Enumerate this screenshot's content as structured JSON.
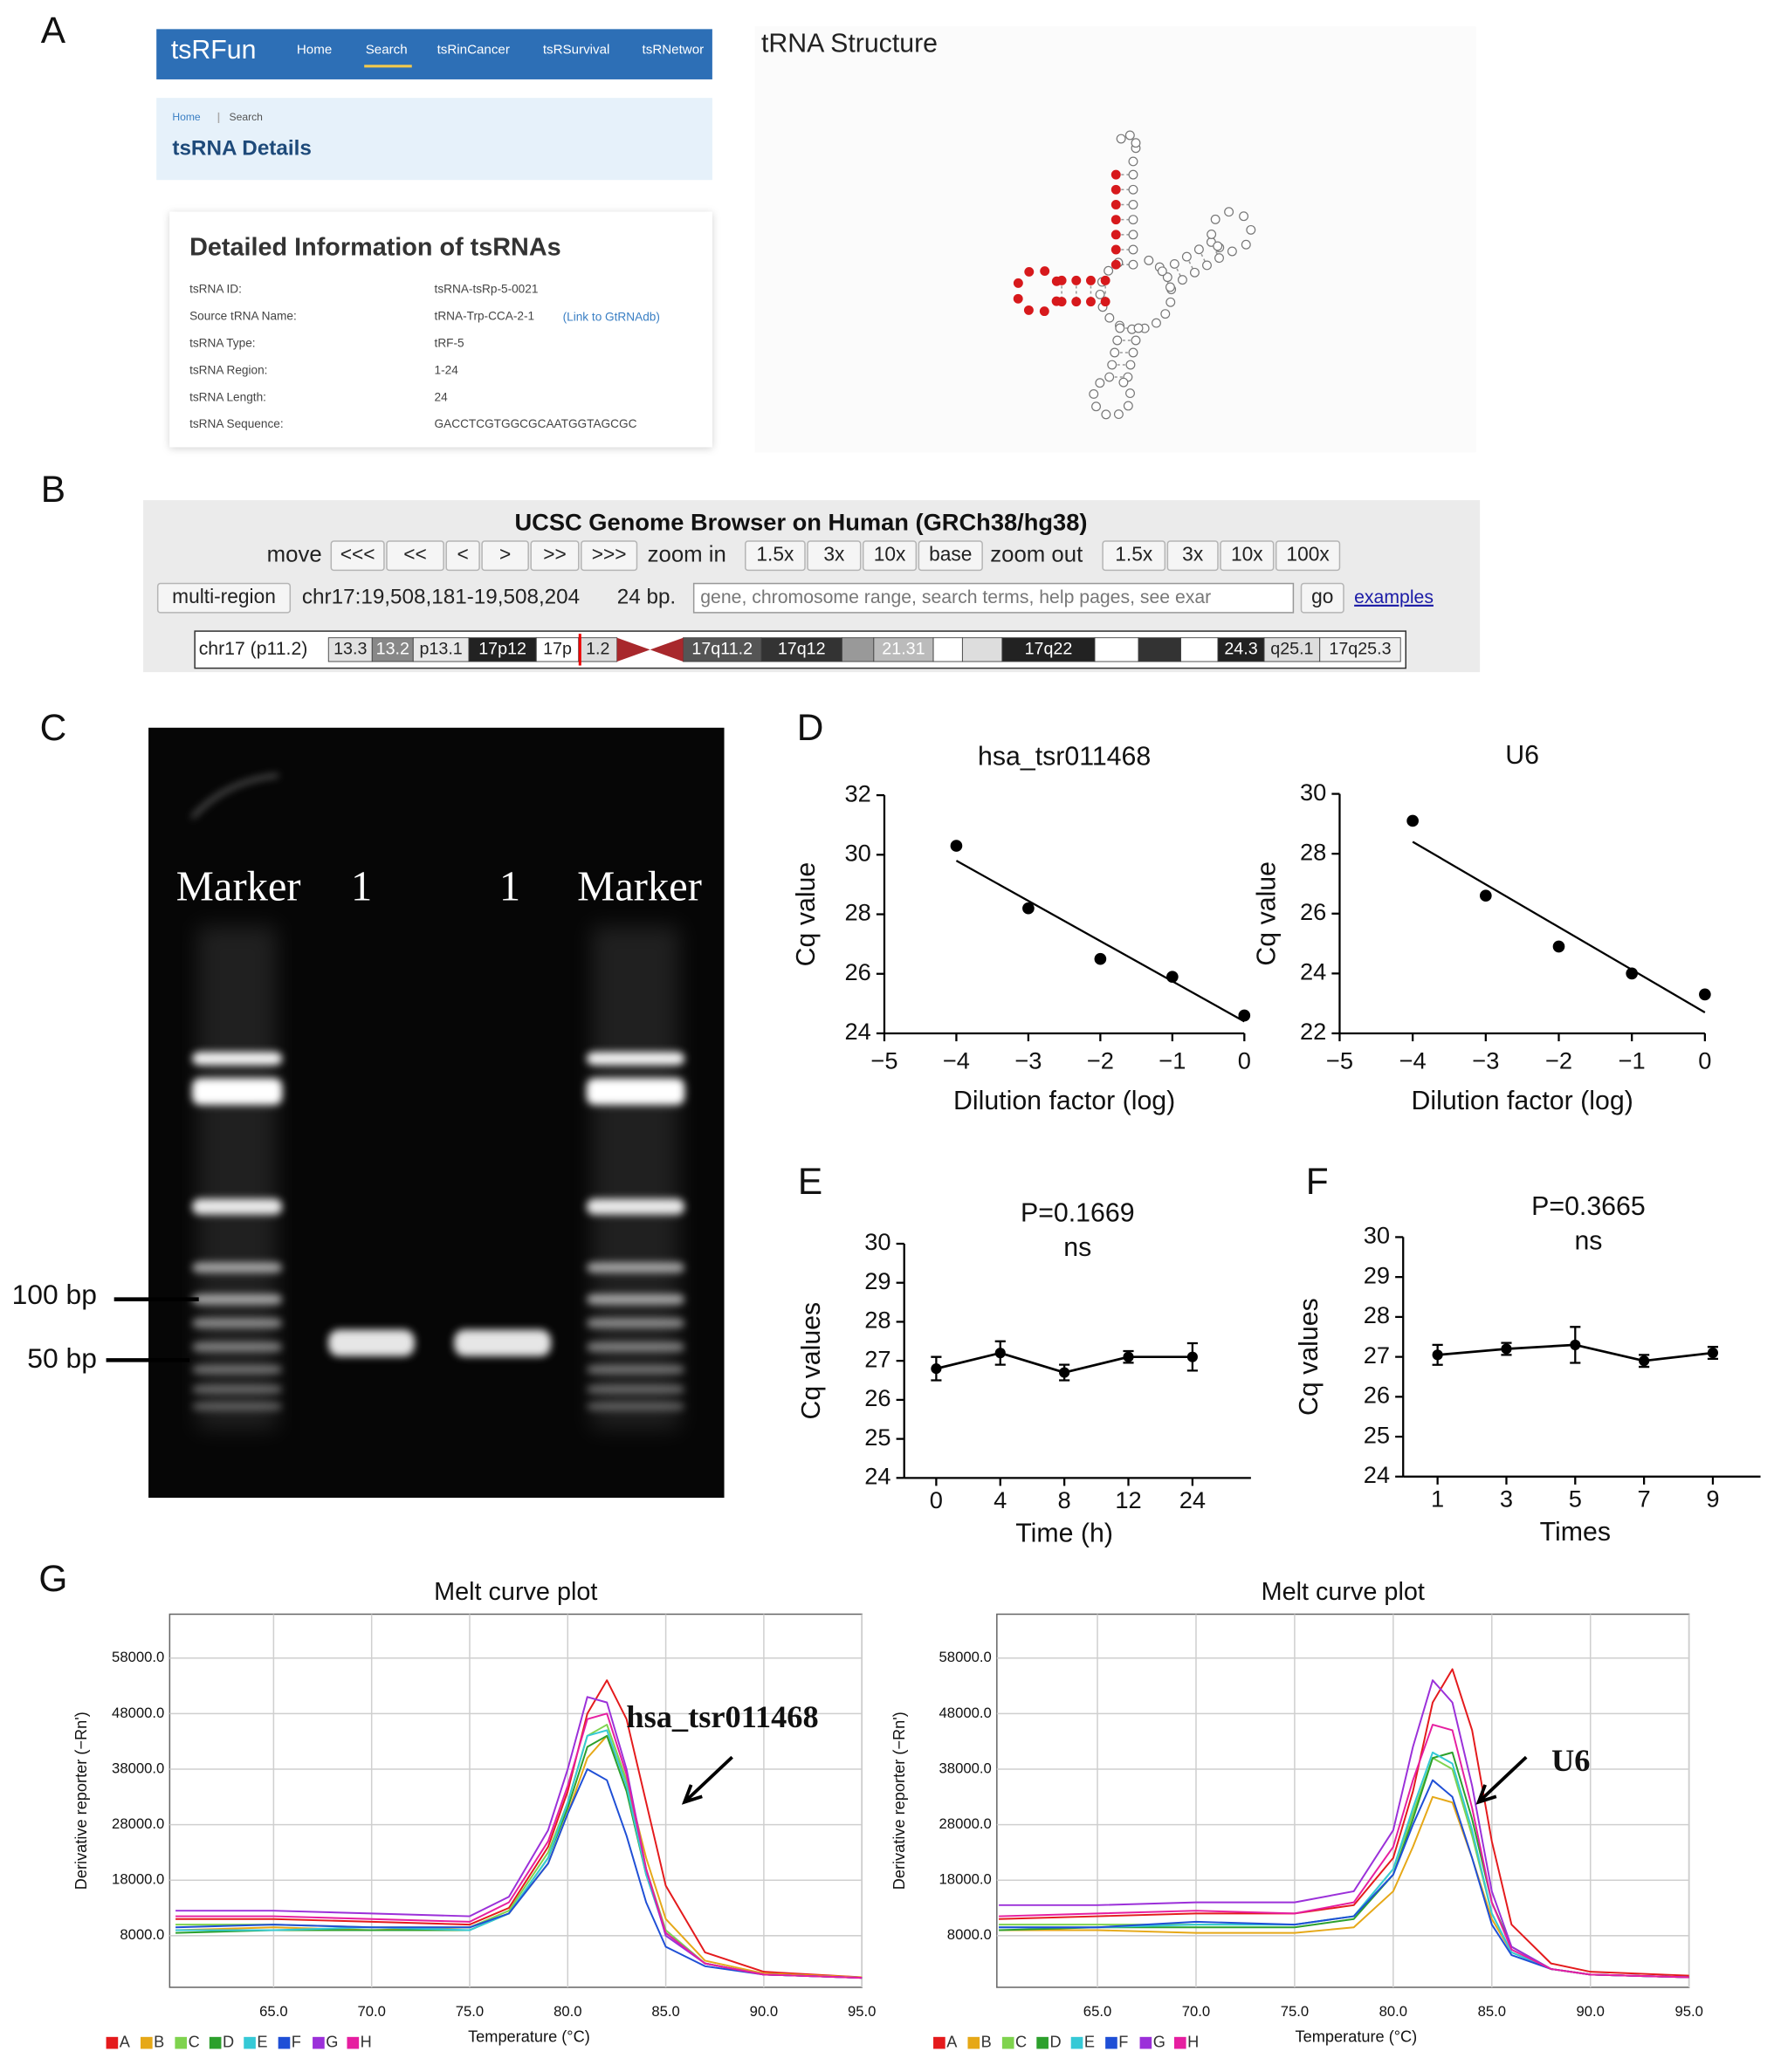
{
  "panel_labels": [
    "A",
    "B",
    "C",
    "D",
    "E",
    "F",
    "G"
  ],
  "tsrfun": {
    "brand": "tsRFun",
    "nav": [
      "Home",
      "Search",
      "tsRinCancer",
      "tsRSurvival",
      "tsRNetwor"
    ],
    "breadcrumb": [
      "Home",
      "Search"
    ],
    "page_title": "tsRNA Details",
    "card_title": "Detailed Information of tsRNAs",
    "rows": [
      [
        "tsRNA ID:",
        "tsRNA-tsRp-5-0021"
      ],
      [
        "Source tRNA Name:",
        "tRNA-Trp-CCA-2-1"
      ],
      [
        "tsRNA Type:",
        "tRF-5"
      ],
      [
        "tsRNA Region:",
        "1-24"
      ],
      [
        "tsRNA Length:",
        "24"
      ],
      [
        "tsRNA Sequence:",
        "GACCTCGTGGCGCAATGGTAGCGC"
      ]
    ],
    "link": "(Link to GtRNAdb)"
  },
  "trna": {
    "title": "tRNA Structure"
  },
  "ucsc": {
    "title": "UCSC Genome Browser on Human (GRCh38/hg38)",
    "move": "move",
    "move_buttons": [
      "<<<",
      "<<",
      "<",
      ">",
      ">>",
      ">>>"
    ],
    "zoom_in": "zoom in",
    "zoom_in_buttons": [
      "1.5x",
      "3x",
      "10x",
      "base"
    ],
    "zoom_out": "zoom out",
    "zoom_out_buttons": [
      "1.5x",
      "3x",
      "10x",
      "100x"
    ],
    "multi_region": "multi-region",
    "position": "chr17:19,508,181-19,508,204",
    "size": "24 bp.",
    "search_placeholder": "gene, chromosome range, search terms, help pages, see exar",
    "go": "go",
    "examples": "examples",
    "chromosome": "chr17 (p11.2)",
    "bands": [
      "13.3",
      "13.2",
      "p13.1",
      "17p12",
      "17p",
      "1.2",
      "17q11.2",
      "17q12",
      "21.31",
      "17q22",
      "24.3",
      "q25.1",
      "17q25.3"
    ]
  },
  "gel": {
    "lanes": [
      "Marker",
      "1",
      "1",
      "Marker"
    ],
    "size_markers": [
      "100 bp",
      "50 bp"
    ]
  },
  "chart_data": [
    {
      "type": "scatter",
      "title": "hsa_tsr011468",
      "xlabel": "Dilution factor (log)",
      "ylabel": "Cq value",
      "x": [
        -4,
        -3,
        -2,
        -1,
        0
      ],
      "values": [
        30.3,
        28.2,
        26.5,
        25.9,
        24.6
      ],
      "color": "#000000",
      "trendline": {
        "x": [
          -4,
          0
        ],
        "y": [
          29.8,
          24.4
        ]
      },
      "xlim": [
        -5,
        0
      ],
      "xticks": [
        {
          "value": -5,
          "label": "−5"
        },
        {
          "value": -4,
          "label": "−4"
        },
        {
          "value": -3,
          "label": "−3"
        },
        {
          "value": -2,
          "label": "−2"
        },
        {
          "value": -1,
          "label": "−1"
        },
        0
      ],
      "ylim": [
        24,
        32
      ],
      "yticks": [
        24,
        26,
        28,
        30,
        32
      ]
    },
    {
      "type": "scatter",
      "title": "U6",
      "xlabel": "Dilution factor (log)",
      "ylabel": "Cq value",
      "x": [
        -4,
        -3,
        -2,
        -1,
        0
      ],
      "values": [
        29.1,
        26.6,
        24.9,
        24.0,
        23.3
      ],
      "color": "#000000",
      "trendline": {
        "x": [
          -4,
          0
        ],
        "y": [
          28.4,
          22.7
        ]
      },
      "xlim": [
        -5,
        0
      ],
      "xticks": [
        {
          "value": -5,
          "label": "−5"
        },
        {
          "value": -4,
          "label": "−4"
        },
        {
          "value": -3,
          "label": "−3"
        },
        {
          "value": -2,
          "label": "−2"
        },
        {
          "value": -1,
          "label": "−1"
        },
        0
      ],
      "ylim": [
        22,
        30
      ],
      "yticks": [
        22,
        24,
        26,
        28,
        30
      ]
    },
    {
      "type": "line",
      "annotations": [
        "P=0.1669",
        "ns"
      ],
      "xlabel": "Time (h)",
      "ylabel": "Cq values",
      "categories": [
        "0",
        "4",
        "8",
        "12",
        "24"
      ],
      "values": [
        26.8,
        27.2,
        26.7,
        27.1,
        27.1
      ],
      "errors": [
        0.3,
        0.3,
        0.2,
        0.15,
        0.35
      ],
      "color": "#000000",
      "ylim": [
        24,
        30
      ],
      "yticks": [
        24,
        25,
        26,
        27,
        28,
        29,
        30
      ]
    },
    {
      "type": "line",
      "annotations": [
        "P=0.3665",
        "ns"
      ],
      "xlabel": "Times",
      "ylabel": "Cq values",
      "categories": [
        "1",
        "3",
        "5",
        "7",
        "9"
      ],
      "values": [
        27.05,
        27.2,
        27.3,
        26.9,
        27.1
      ],
      "errors": [
        0.25,
        0.15,
        0.45,
        0.15,
        0.15
      ],
      "color": "#000000",
      "ylim": [
        24,
        30
      ],
      "yticks": [
        24,
        25,
        26,
        27,
        28,
        29,
        30
      ]
    },
    {
      "type": "line",
      "title": "Melt curve plot",
      "xlabel": "Temperature (°C)",
      "ylabel": "Derivative reporter (−Rn')",
      "annotation": "hsa_tsr011468",
      "grid": true,
      "legend": "bottom-left",
      "x": [
        60,
        65,
        70,
        75,
        77,
        79,
        80,
        81,
        82,
        83,
        84,
        85,
        87,
        90,
        95
      ],
      "series": [
        {
          "name": "A",
          "color": "#e41a1c",
          "values": [
            11000,
            11000,
            10500,
            10000,
            13000,
            24000,
            34000,
            48000,
            54000,
            47000,
            32000,
            17000,
            5000,
            1500,
            500
          ]
        },
        {
          "name": "B",
          "color": "#e6a817",
          "values": [
            9000,
            9500,
            9000,
            9500,
            12000,
            21000,
            30000,
            40000,
            44000,
            36000,
            22000,
            11000,
            3500,
            1200,
            500
          ]
        },
        {
          "name": "C",
          "color": "#7fd34e",
          "values": [
            10000,
            10000,
            9500,
            9500,
            12500,
            23000,
            32000,
            44000,
            46000,
            36000,
            20000,
            9000,
            3000,
            1000,
            400
          ]
        },
        {
          "name": "D",
          "color": "#2ca02c",
          "values": [
            8500,
            9000,
            9000,
            9000,
            12000,
            22000,
            31000,
            42000,
            44000,
            34000,
            19000,
            8500,
            3000,
            1000,
            400
          ]
        },
        {
          "name": "E",
          "color": "#35c9d6",
          "values": [
            9000,
            9000,
            9500,
            9000,
            12000,
            22000,
            32000,
            44000,
            45000,
            35000,
            19000,
            8500,
            3000,
            1000,
            400
          ]
        },
        {
          "name": "F",
          "color": "#1f4fd6",
          "values": [
            9500,
            10000,
            9500,
            9500,
            12000,
            21000,
            30000,
            38000,
            36000,
            26000,
            14000,
            6000,
            2500,
            1000,
            400
          ]
        },
        {
          "name": "G",
          "color": "#9b30d9",
          "values": [
            12500,
            12500,
            12000,
            11500,
            15000,
            27000,
            38000,
            51000,
            50000,
            38000,
            20000,
            8000,
            3000,
            1000,
            400
          ]
        },
        {
          "name": "H",
          "color": "#e61ea0",
          "values": [
            11500,
            11500,
            11000,
            10500,
            14000,
            25000,
            35000,
            47000,
            48000,
            37000,
            20000,
            8500,
            3000,
            1000,
            400
          ]
        }
      ],
      "xlim": [
        59.7,
        95
      ],
      "xticks": [
        {
          "value": 65,
          "label": "65.0"
        },
        {
          "value": 70,
          "label": "70.0"
        },
        {
          "value": 75,
          "label": "75.0"
        },
        {
          "value": 80,
          "label": "80.0"
        },
        {
          "value": 85,
          "label": "85.0"
        },
        {
          "value": 90,
          "label": "90.0"
        },
        {
          "value": 95,
          "label": "95.0"
        }
      ],
      "ylim": [
        -1300,
        65900
      ],
      "yticks": [
        {
          "value": 8000,
          "label": "8000.0"
        },
        {
          "value": 18000,
          "label": "18000.0"
        },
        {
          "value": 28000,
          "label": "28000.0"
        },
        {
          "value": 38000,
          "label": "38000.0"
        },
        {
          "value": 48000,
          "label": "48000.0"
        },
        {
          "value": 58000,
          "label": "58000.0"
        }
      ]
    },
    {
      "type": "line",
      "title": "Melt curve plot",
      "xlabel": "Temperature (°C)",
      "ylabel": "Derivative reporter (−Rn')",
      "annotation": "U6",
      "grid": true,
      "legend": "bottom-left",
      "x": [
        60,
        65,
        70,
        75,
        78,
        80,
        81,
        82,
        83,
        84,
        85,
        86,
        88,
        90,
        95
      ],
      "series": [
        {
          "name": "A",
          "color": "#e41a1c",
          "values": [
            11000,
            11500,
            12000,
            12000,
            13500,
            22000,
            34000,
            50000,
            56000,
            45000,
            25000,
            10000,
            3000,
            1500,
            800
          ]
        },
        {
          "name": "B",
          "color": "#e6a817",
          "values": [
            9000,
            9000,
            8500,
            8500,
            9500,
            16000,
            24000,
            33000,
            32000,
            22000,
            11000,
            5000,
            2000,
            1000,
            500
          ]
        },
        {
          "name": "C",
          "color": "#7fd34e",
          "values": [
            10000,
            10000,
            10000,
            10000,
            11500,
            20000,
            30000,
            40000,
            38000,
            26000,
            12000,
            5000,
            2000,
            1000,
            500
          ]
        },
        {
          "name": "D",
          "color": "#2ca02c",
          "values": [
            9000,
            9500,
            9500,
            9500,
            11000,
            19000,
            29000,
            40000,
            41000,
            29000,
            14000,
            6000,
            2000,
            1000,
            500
          ]
        },
        {
          "name": "E",
          "color": "#35c9d6",
          "values": [
            9500,
            9500,
            10000,
            10000,
            11500,
            20000,
            31000,
            41000,
            39000,
            27000,
            12000,
            5000,
            2000,
            1000,
            500
          ]
        },
        {
          "name": "F",
          "color": "#1f4fd6",
          "values": [
            9500,
            9500,
            10500,
            10000,
            11500,
            19000,
            28000,
            36000,
            33000,
            22000,
            10000,
            4500,
            2000,
            1000,
            500
          ]
        },
        {
          "name": "G",
          "color": "#9b30d9",
          "values": [
            13500,
            13500,
            14000,
            14000,
            16000,
            27000,
            42000,
            54000,
            50000,
            35000,
            16000,
            6000,
            2000,
            1000,
            500
          ]
        },
        {
          "name": "H",
          "color": "#e61ea0",
          "values": [
            11500,
            12000,
            12500,
            12000,
            14000,
            24000,
            36000,
            46000,
            45000,
            31000,
            14000,
            5500,
            2000,
            1000,
            500
          ]
        }
      ],
      "xlim": [
        59.9,
        95
      ],
      "xticks": [
        {
          "value": 65,
          "label": "65.0"
        },
        {
          "value": 70,
          "label": "70.0"
        },
        {
          "value": 75,
          "label": "75.0"
        },
        {
          "value": 80,
          "label": "80.0"
        },
        {
          "value": 85,
          "label": "85.0"
        },
        {
          "value": 90,
          "label": "90.0"
        },
        {
          "value": 95,
          "label": "95.0"
        }
      ],
      "ylim": [
        -1300,
        65900
      ],
      "yticks": [
        {
          "value": 8000,
          "label": "8000.0"
        },
        {
          "value": 18000,
          "label": "18000.0"
        },
        {
          "value": 28000,
          "label": "28000.0"
        },
        {
          "value": 38000,
          "label": "38000.0"
        },
        {
          "value": 48000,
          "label": "48000.0"
        },
        {
          "value": 58000,
          "label": "58000.0"
        }
      ]
    }
  ]
}
